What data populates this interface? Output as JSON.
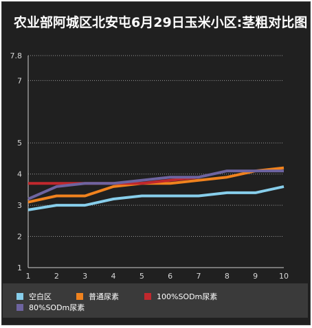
{
  "chart_data": {
    "type": "line",
    "title": "农业部阿城区北安屯6月29日玉米小区:茎粗对比图",
    "xlabel": "",
    "ylabel": "",
    "x": [
      1,
      2,
      3,
      4,
      5,
      6,
      7,
      8,
      9,
      10
    ],
    "x_tick_labels": [
      "1",
      "2",
      "3",
      "4",
      "5",
      "6",
      "7",
      "8",
      "9",
      "10"
    ],
    "y_ticks": [
      "1",
      "2",
      "3",
      "4",
      "5",
      "7",
      "7.8"
    ],
    "y_tick_values": [
      1,
      2,
      3,
      4,
      5,
      7,
      7.8
    ],
    "ylim": [
      1,
      7.8
    ],
    "grid": true,
    "legend_position": "bottom",
    "series": [
      {
        "name": "空白区",
        "color": "#87ceeb",
        "values": [
          2.85,
          3.0,
          3.0,
          3.2,
          3.3,
          3.3,
          3.3,
          3.4,
          3.4,
          3.6
        ]
      },
      {
        "name": "普通尿素",
        "color": "#f0821e",
        "values": [
          3.1,
          3.3,
          3.3,
          3.6,
          3.7,
          3.7,
          3.8,
          3.9,
          4.1,
          4.2
        ]
      },
      {
        "name": "100%SODm尿素",
        "color": "#c0282d",
        "values": [
          3.7,
          3.7,
          3.7,
          3.7,
          3.7,
          3.8,
          3.9,
          null,
          null,
          null
        ]
      },
      {
        "name": "80%SODm尿素",
        "color": "#6e64a0",
        "values": [
          3.2,
          3.6,
          3.7,
          3.7,
          3.8,
          3.9,
          3.9,
          4.1,
          4.1,
          4.1
        ]
      }
    ]
  }
}
